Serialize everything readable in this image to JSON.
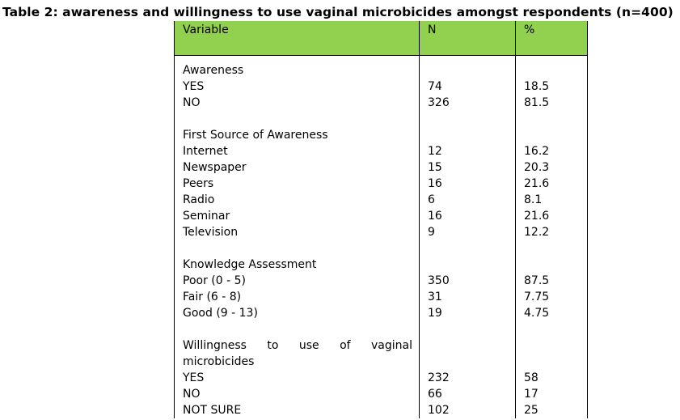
{
  "caption": "Table 2: awareness and willingness to use vaginal microbicides amongst respondents (n=400)",
  "header": {
    "variable": "Variable",
    "n": "N",
    "pct": "%"
  },
  "colors": {
    "header_bg": "#92d050"
  },
  "sections": {
    "awareness": {
      "title": "Awareness",
      "rows": [
        {
          "label": "YES",
          "n": "74",
          "pct": "18.5"
        },
        {
          "label": "NO",
          "n": "326",
          "pct": "81.5"
        }
      ]
    },
    "source": {
      "title": "First Source of Awareness",
      "rows": [
        {
          "label": "Internet",
          "n": "12",
          "pct": "16.2"
        },
        {
          "label": "Newspaper",
          "n": "15",
          "pct": "20.3"
        },
        {
          "label": "Peers",
          "n": "16",
          "pct": "21.6"
        },
        {
          "label": "Radio",
          "n": "6",
          "pct": "8.1"
        },
        {
          "label": "Seminar",
          "n": "16",
          "pct": "21.6"
        },
        {
          "label": "Television",
          "n": "9",
          "pct": "12.2"
        }
      ]
    },
    "knowledge": {
      "title": "Knowledge Assessment",
      "rows": [
        {
          "label": "Poor (0 - 5)",
          "n": "350",
          "pct": "87.5"
        },
        {
          "label": "Fair (6 - 8)",
          "n": "31",
          "pct": "7.75"
        },
        {
          "label": "Good (9 - 13)",
          "n": "19",
          "pct": "4.75"
        }
      ]
    },
    "willingness": {
      "title_line1": "Willingness to use of vaginal",
      "title_line2": "microbicides",
      "rows": [
        {
          "label": "YES",
          "n": "232",
          "pct": "58"
        },
        {
          "label": "NO",
          "n": "66",
          "pct": "17"
        },
        {
          "label": "NOT SURE",
          "n": "102",
          "pct": "25"
        }
      ]
    }
  }
}
